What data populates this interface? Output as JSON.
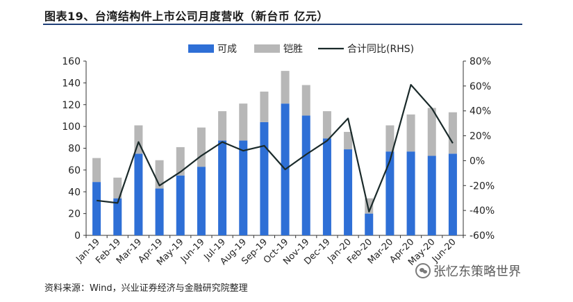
{
  "title": "图表19、台湾结构件上市公司月度营收（新台币 亿元）",
  "source": "资料来源：Wind，兴业证券经济与金融研究院整理",
  "watermark": "张忆东策略世界",
  "watermark_icon": "wechat-icon",
  "colors": {
    "bar1": "#2e6fd6",
    "bar2": "#b7b7b7",
    "line": "#1a2a2a"
  },
  "chart_data": {
    "type": "bar",
    "stacked": true,
    "categories": [
      "Jan-19",
      "Feb-19",
      "Mar-19",
      "Apr-19",
      "May-19",
      "Jun-19",
      "Jul-19",
      "Aug-19",
      "Sep-19",
      "Oct-19",
      "Nov-19",
      "Dec-19",
      "Jan-20",
      "Feb-20",
      "Mar-20",
      "Apr-20",
      "May-20",
      "Jun-20"
    ],
    "series": [
      {
        "name": "可成",
        "type": "bar",
        "values": [
          49,
          34,
          75,
          43,
          55,
          63,
          87,
          87,
          104,
          121,
          110,
          89,
          79,
          20,
          77,
          77,
          73,
          75
        ]
      },
      {
        "name": "铠胜",
        "type": "bar",
        "values": [
          22,
          19,
          26,
          26,
          26,
          36,
          27,
          34,
          28,
          30,
          28,
          25,
          16,
          14,
          24,
          34,
          44,
          38
        ]
      },
      {
        "name": "合计同比(RHS)",
        "type": "line",
        "axis": "right",
        "values": [
          -32,
          -34,
          15,
          -20,
          -9,
          4,
          15,
          8,
          12,
          -7,
          5,
          16,
          34,
          -41,
          0,
          61,
          42,
          14
        ]
      }
    ],
    "ylim": [
      0,
      160
    ],
    "yticks": [
      "0",
      "20",
      "40",
      "60",
      "80",
      "100",
      "120",
      "140",
      "160"
    ],
    "y2lim": [
      -60,
      80
    ],
    "y2ticks": [
      "-60%",
      "-40%",
      "-20%",
      "0%",
      "20%",
      "40%",
      "60%",
      "80%"
    ],
    "legend_position": "top-center",
    "grid": false
  }
}
